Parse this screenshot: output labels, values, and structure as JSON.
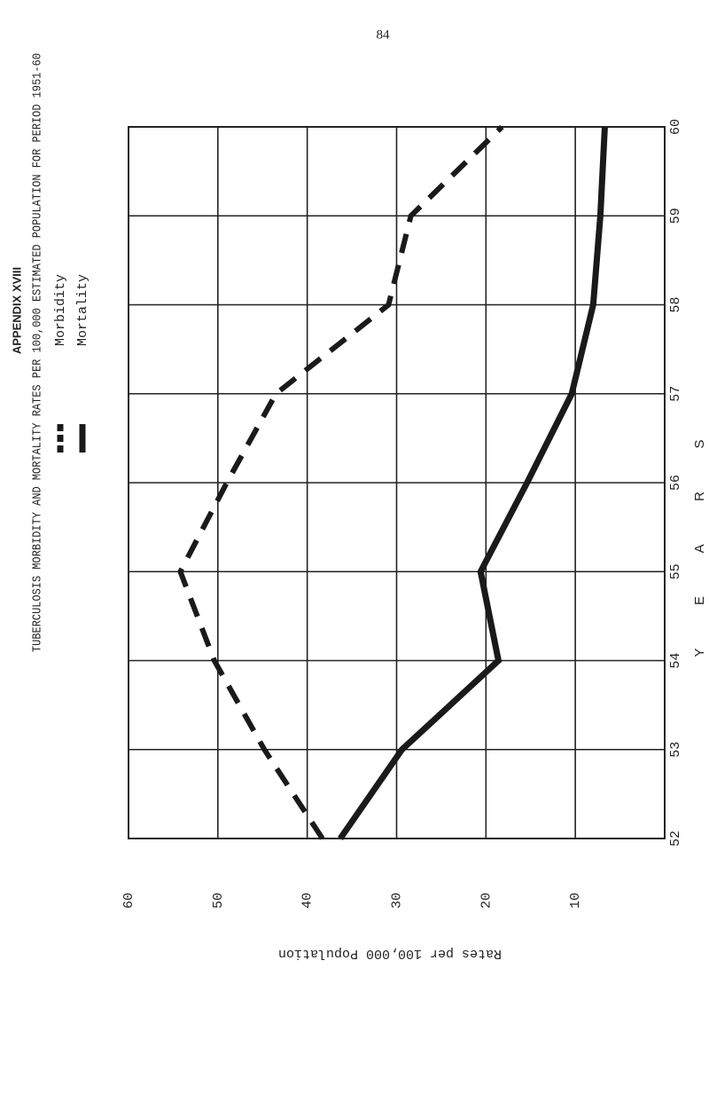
{
  "page_number": "84",
  "chart_data": {
    "type": "line",
    "header": "APPENDIX XVIII",
    "title": "TUBERCULOSIS MORBIDITY AND MORTALITY RATES PER 100,000 ESTIMATED POPULATION FOR PERIOD 1951-60",
    "x_label": "YEARS",
    "y_label": "Rates per 100,000 Population",
    "x": [
      52,
      53,
      54,
      55,
      56,
      57,
      58,
      59,
      60
    ],
    "series": [
      {
        "name": "Morbidity",
        "color": "#1a1a1a",
        "style": "dashed",
        "values": [
          38.3,
          44.8,
          50.4,
          54.2,
          49,
          43.5,
          30.9,
          28.4,
          18.2
        ]
      },
      {
        "name": "Mortality",
        "color": "#1a1a1a",
        "style": "solid",
        "values": [
          36.3,
          29.4,
          18.6,
          20.6,
          15.4,
          10.4,
          8,
          7.2,
          6.7
        ]
      }
    ],
    "xlim": [
      52,
      60
    ],
    "xticks": [
      52,
      53,
      54,
      55,
      56,
      57,
      58,
      59,
      60
    ],
    "ylim": [
      0,
      60
    ],
    "yticks": [
      10,
      20,
      30,
      40,
      50,
      60
    ],
    "grid": true
  }
}
